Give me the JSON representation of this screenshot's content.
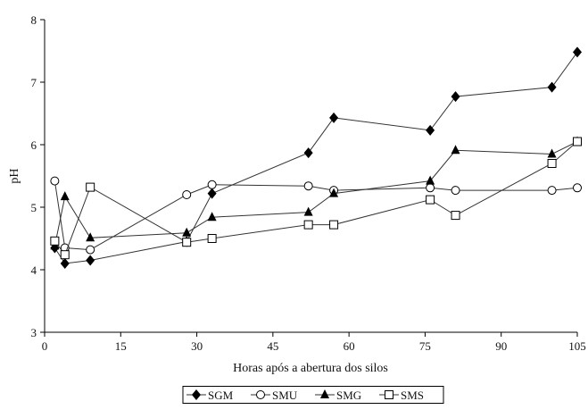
{
  "chart_data": {
    "type": "line",
    "title": "",
    "xlabel": "Horas após a abertura dos silos",
    "ylabel": "pH",
    "xlim": [
      0,
      105
    ],
    "ylim": [
      3,
      8
    ],
    "xticks": [
      0,
      15,
      30,
      45,
      60,
      75,
      90,
      105
    ],
    "yticks": [
      3,
      4,
      5,
      6,
      7,
      8
    ],
    "grid": false,
    "legend_position": "bottom-center",
    "colors": {
      "line": "#333333",
      "marker": "#000000",
      "axis": "#000000"
    },
    "series": [
      {
        "name": "SGM",
        "marker": "diamond",
        "x": [
          2,
          4,
          9,
          28,
          33,
          52,
          57,
          76,
          81,
          100,
          105
        ],
        "y": [
          4.35,
          4.1,
          4.15,
          4.45,
          5.22,
          5.87,
          6.43,
          6.23,
          6.77,
          6.92,
          7.48
        ]
      },
      {
        "name": "SMU",
        "marker": "circle",
        "x": [
          2,
          4,
          9,
          28,
          33,
          52,
          57,
          76,
          81,
          100,
          105
        ],
        "y": [
          5.42,
          4.35,
          4.32,
          5.2,
          5.36,
          5.34,
          5.27,
          5.31,
          5.27,
          5.27,
          5.31
        ]
      },
      {
        "name": "SMG",
        "marker": "triangle",
        "x": [
          2,
          4,
          9,
          28,
          33,
          52,
          57,
          76,
          81,
          100,
          105
        ],
        "y": [
          4.38,
          5.17,
          4.51,
          4.59,
          4.84,
          4.92,
          5.22,
          5.42,
          5.91,
          5.85,
          6.05
        ]
      },
      {
        "name": "SMS",
        "marker": "square",
        "x": [
          2,
          4,
          9,
          28,
          33,
          52,
          57,
          76,
          81,
          100,
          105
        ],
        "y": [
          4.46,
          4.24,
          5.32,
          4.44,
          4.5,
          4.72,
          4.72,
          5.12,
          4.87,
          5.7,
          6.05
        ]
      }
    ]
  }
}
